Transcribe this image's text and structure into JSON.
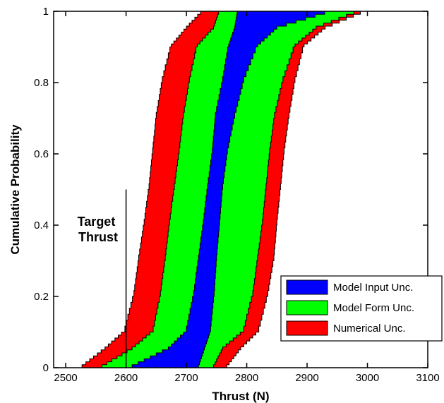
{
  "chart_data": {
    "type": "area",
    "xlabel": "Thrust (N)",
    "ylabel": "Cumulative Probability",
    "xlim": [
      2480,
      3100
    ],
    "ylim": [
      0,
      1
    ],
    "x_ticks": [
      "2500",
      "2600",
      "2700",
      "2800",
      "2900",
      "3000",
      "3100"
    ],
    "y_ticks": [
      "0",
      "0.2",
      "0.4",
      "0.6",
      "0.8",
      "1"
    ],
    "grid": false,
    "legend_position": "bottom-right",
    "probability_levels": [
      0,
      0.05,
      0.1,
      0.2,
      0.3,
      0.4,
      0.5,
      0.6,
      0.7,
      0.8,
      0.9,
      0.95,
      1
    ],
    "series": [
      {
        "name": "Numerical Unc.",
        "color": "#ff0000",
        "lower_x": [
          2527,
          2565,
          2598,
          2613,
          2621,
          2630,
          2638,
          2644,
          2650,
          2660,
          2675,
          2700,
          2728
        ],
        "upper_x": [
          2767,
          2790,
          2820,
          2835,
          2845,
          2850,
          2856,
          2862,
          2870,
          2880,
          2895,
          2930,
          3000
        ]
      },
      {
        "name": "Model Form Unc.",
        "color": "#00ff00",
        "lower_x": [
          2560,
          2610,
          2645,
          2657,
          2665,
          2672,
          2680,
          2688,
          2695,
          2705,
          2718,
          2745,
          2755
        ],
        "upper_x": [
          2745,
          2760,
          2795,
          2810,
          2818,
          2826,
          2832,
          2838,
          2846,
          2860,
          2880,
          2915,
          2990
        ]
      },
      {
        "name": "Model Input Unc.",
        "color": "#0000ff",
        "lower_x": [
          2610,
          2670,
          2700,
          2712,
          2720,
          2728,
          2735,
          2743,
          2748,
          2760,
          2770,
          2780,
          2785
        ],
        "upper_x": [
          2720,
          2730,
          2740,
          2746,
          2750,
          2755,
          2760,
          2768,
          2780,
          2795,
          2818,
          2850,
          2945
        ]
      }
    ],
    "annotations": [
      {
        "text": "Target\nThrust",
        "x": 2600,
        "y_range": [
          0,
          0.5
        ]
      }
    ]
  },
  "annotation": {
    "line1": "Target",
    "line2": "Thrust"
  },
  "legend": [
    {
      "label": "Model Input Unc.",
      "color": "#0000ff"
    },
    {
      "label": "Model Form Unc.",
      "color": "#00ff00"
    },
    {
      "label": "Numerical Unc.",
      "color": "#ff0000"
    }
  ]
}
